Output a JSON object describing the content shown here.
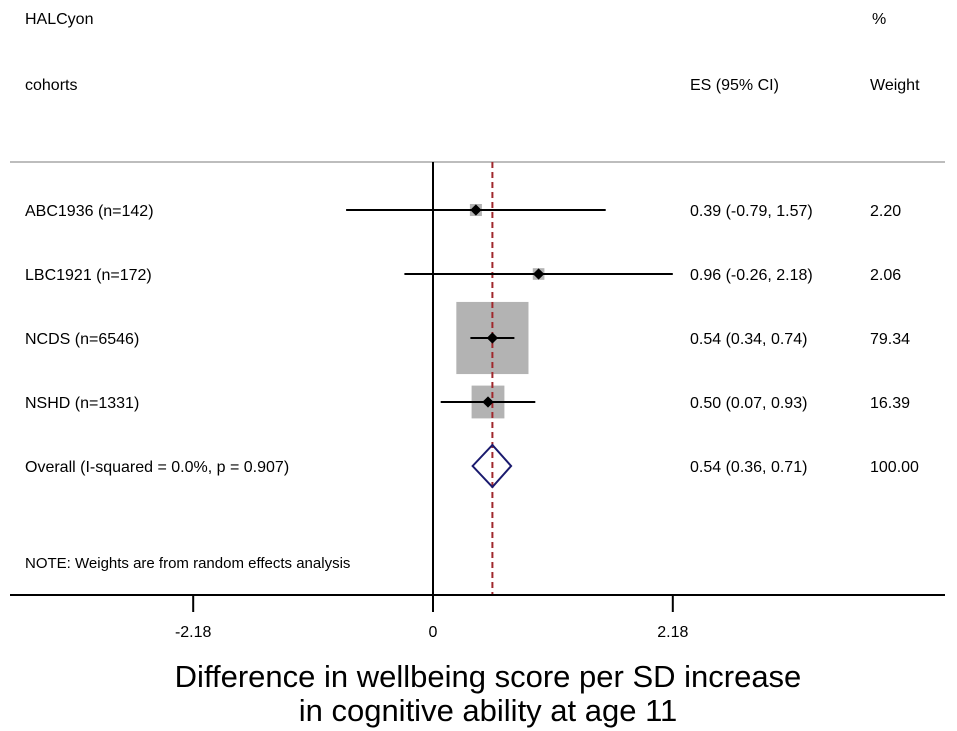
{
  "header": {
    "study_label": "HALCyon",
    "cohorts_label": "cohorts",
    "es_header": "ES (95% CI)",
    "weight_header_pct": "%",
    "weight_header": "Weight"
  },
  "note": "NOTE: Weights are from random effects analysis",
  "colors": {
    "ci_line": "#000000",
    "weight_box": "#b3b3b3",
    "point": "#000000",
    "overall_diamond": "#1a1a6e",
    "overall_line": "#a0282d"
  },
  "chart_data": {
    "type": "forest",
    "xlabel_line1": "Difference in wellbeing score per SD increase",
    "xlabel_line2": "in cognitive ability at age 11",
    "xticks": [
      -2.18,
      0,
      2.18
    ],
    "xtick_labels": [
      "-2.18",
      "0",
      "2.18"
    ],
    "studies": [
      {
        "label": "ABC1936 (n=142)",
        "es": 0.39,
        "lo": -0.79,
        "hi": 1.57,
        "es_text": "0.39 (-0.79, 1.57)",
        "weight": 2.2,
        "weight_text": "2.20"
      },
      {
        "label": "LBC1921 (n=172)",
        "es": 0.96,
        "lo": -0.26,
        "hi": 2.18,
        "es_text": "0.96 (-0.26, 2.18)",
        "weight": 2.06,
        "weight_text": "2.06"
      },
      {
        "label": "NCDS (n=6546)",
        "es": 0.54,
        "lo": 0.34,
        "hi": 0.74,
        "es_text": "0.54 (0.34, 0.74)",
        "weight": 79.34,
        "weight_text": "79.34"
      },
      {
        "label": "NSHD (n=1331)",
        "es": 0.5,
        "lo": 0.07,
        "hi": 0.93,
        "es_text": "0.50 (0.07, 0.93)",
        "weight": 16.39,
        "weight_text": "16.39"
      }
    ],
    "overall": {
      "label": "Overall  (I-squared = 0.0%, p = 0.907)",
      "es": 0.54,
      "lo": 0.36,
      "hi": 0.71,
      "es_text": "0.54 (0.36, 0.71)",
      "weight_text": "100.00"
    }
  }
}
